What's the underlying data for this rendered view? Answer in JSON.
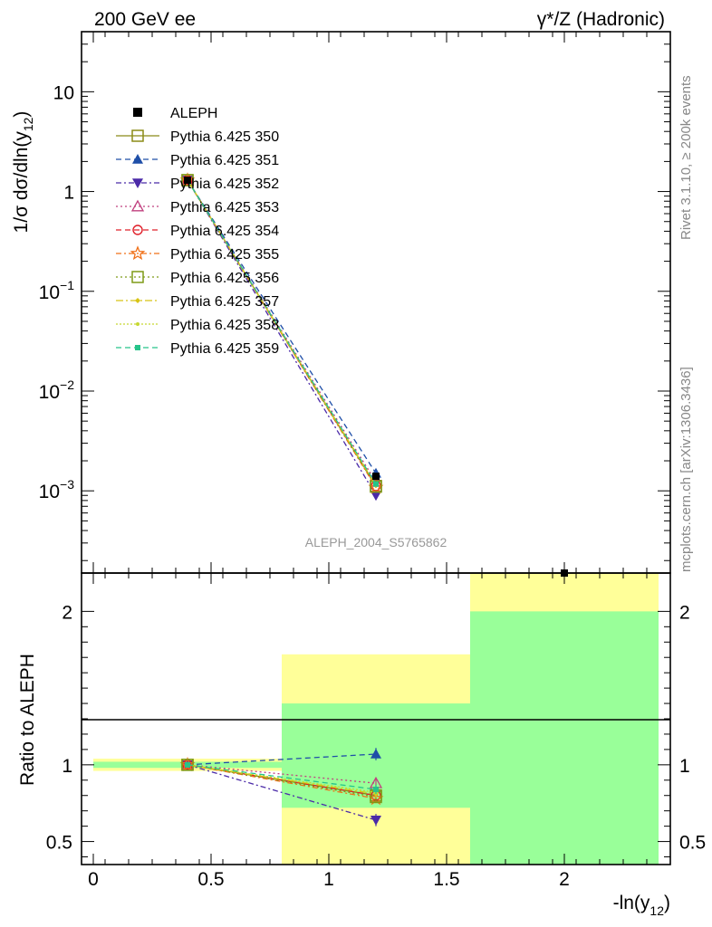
{
  "header": {
    "left": "200 GeV ee",
    "right": "γ*/Z (Hadronic)"
  },
  "side_labels": {
    "rivet": "Rivet 3.1.10, ≥ 200k events",
    "mcplots": "mcplots.cern.ch [arXiv:1306.3436]"
  },
  "analysis_tag": "ALEPH_2004_S5765862",
  "colors": {
    "band_inner": "#99ff99",
    "band_outer": "#ffff99",
    "reference": "#000000"
  },
  "chart_data": [
    {
      "type": "line",
      "panel": "main",
      "ylabel_main": "1/σ  dσ/dln(y",
      "ylabel_sub": "12",
      "ylabel_tail": ")",
      "yscale": "log",
      "ylim": [
        0.00015,
        40
      ],
      "xlim": [
        -0.05,
        2.45
      ],
      "y_ticks": [
        {
          "v": 10,
          "base": "10",
          "exp": ""
        },
        {
          "v": 1,
          "base": "1",
          "exp": ""
        },
        {
          "v": 0.1,
          "base": "10",
          "exp": "−1"
        },
        {
          "v": 0.01,
          "base": "10",
          "exp": "−2"
        },
        {
          "v": 0.001,
          "base": "10",
          "exp": "−3"
        }
      ],
      "data": {
        "name": "ALEPH",
        "x": [
          0.4,
          1.2,
          2.0
        ],
        "y": [
          1.3,
          0.0014,
          0.00015
        ]
      },
      "series": [
        {
          "name": "Pythia 6.425 350",
          "color": "#8b8b17",
          "dash": "",
          "marker": "square-open",
          "y": [
            1.3,
            0.00112
          ]
        },
        {
          "name": "Pythia 6.425 351",
          "color": "#1f4fa8",
          "dash": "6,4",
          "marker": "triangle-up-filled",
          "y": [
            1.3,
            0.0015
          ]
        },
        {
          "name": "Pythia 6.425 352",
          "color": "#4b2aa8",
          "dash": "6,3,2,3",
          "marker": "triangle-down-filled",
          "y": [
            1.3,
            0.0009
          ]
        },
        {
          "name": "Pythia 6.425 353",
          "color": "#c0407f",
          "dash": "2,3",
          "marker": "triangle-up-open",
          "y": [
            1.3,
            0.00123
          ]
        },
        {
          "name": "Pythia 6.425 354",
          "color": "#e0202a",
          "dash": "6,4",
          "marker": "circle-open",
          "y": [
            1.3,
            0.00112
          ]
        },
        {
          "name": "Pythia 6.425 355",
          "color": "#f07018",
          "dash": "6,3,2,3",
          "marker": "star-open",
          "y": [
            1.3,
            0.00108
          ]
        },
        {
          "name": "Pythia 6.425 356",
          "color": "#7e9a17",
          "dash": "2,3",
          "marker": "square-open",
          "y": [
            1.3,
            0.0011
          ]
        },
        {
          "name": "Pythia 6.425 357",
          "color": "#d8c414",
          "dash": "8,3,2,3",
          "marker": "diamond-small",
          "y": [
            1.3,
            0.00113
          ]
        },
        {
          "name": "Pythia 6.425 358",
          "color": "#c6d832",
          "dash": "2,2",
          "marker": "dot",
          "y": [
            1.3,
            0.00115
          ]
        },
        {
          "name": "Pythia 6.425 359",
          "color": "#26c48a",
          "dash": "6,4",
          "marker": "square-filled-small",
          "y": [
            1.3,
            0.00117
          ]
        }
      ]
    },
    {
      "type": "line",
      "panel": "ratio",
      "ylabel": "Ratio to ALEPH",
      "xlabel_main": "-ln(y",
      "xlabel_sub": "12",
      "xlabel_tail": ")",
      "ylim": [
        0.35,
        2.25
      ],
      "xlim": [
        -0.05,
        2.45
      ],
      "x_ticks": [
        0,
        0.5,
        1,
        1.5,
        2
      ],
      "x_tick_labels": [
        "0",
        "0.5",
        "1",
        "1.5",
        "2"
      ],
      "y_ticks": [
        0.5,
        1,
        2
      ],
      "y_tick_labels": [
        "0.5",
        "1",
        "2"
      ],
      "bands": [
        {
          "x0": 0.0,
          "x1": 0.8,
          "inner": [
            0.98,
            1.02
          ],
          "outer": [
            0.96,
            1.04
          ]
        },
        {
          "x0": 0.8,
          "x1": 1.6,
          "inner": [
            0.72,
            1.4
          ],
          "outer": [
            0.35,
            1.72
          ]
        },
        {
          "x0": 1.6,
          "x1": 2.4,
          "inner": [
            0.35,
            2.0
          ],
          "outer": [
            0.35,
            2.25
          ]
        }
      ],
      "x": [
        0.4,
        1.2
      ],
      "ratios": [
        [
          1.0,
          0.8
        ],
        [
          1.0,
          1.07
        ],
        [
          1.0,
          0.64
        ],
        [
          1.0,
          0.88
        ],
        [
          1.0,
          0.8
        ],
        [
          1.0,
          0.78
        ],
        [
          1.0,
          0.79
        ],
        [
          1.0,
          0.81
        ],
        [
          1.0,
          0.82
        ],
        [
          1.0,
          0.84
        ]
      ],
      "ratio_errors": [
        0.03,
        0.04,
        0.04,
        0.03,
        0.03,
        0.03,
        0.03,
        0.03,
        0.03,
        0.03
      ]
    }
  ]
}
